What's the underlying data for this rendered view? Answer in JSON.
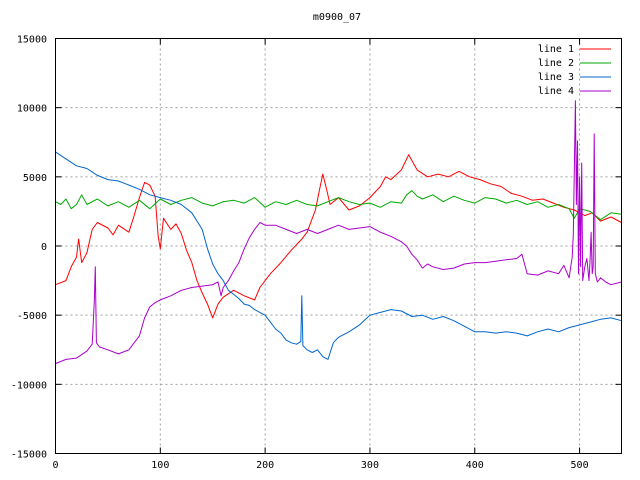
{
  "chart_data": {
    "type": "line",
    "title": "m0900_07",
    "xlabel": "",
    "ylabel": "",
    "xlim": [
      0,
      540
    ],
    "ylim": [
      -15000,
      15000
    ],
    "xticks": [
      0,
      100,
      200,
      300,
      400,
      500
    ],
    "yticks": [
      -15000,
      -10000,
      -5000,
      0,
      5000,
      10000,
      15000
    ],
    "grid": true,
    "legend_position": "top-right",
    "series": [
      {
        "name": "line 1",
        "color": "#ff0000",
        "points": [
          [
            0,
            -2800
          ],
          [
            10,
            -2500
          ],
          [
            15,
            -1500
          ],
          [
            20,
            -800
          ],
          [
            22,
            500
          ],
          [
            25,
            -1200
          ],
          [
            30,
            -500
          ],
          [
            35,
            1200
          ],
          [
            40,
            1700
          ],
          [
            50,
            1300
          ],
          [
            55,
            800
          ],
          [
            60,
            1500
          ],
          [
            70,
            1000
          ],
          [
            75,
            2200
          ],
          [
            80,
            3500
          ],
          [
            85,
            4600
          ],
          [
            90,
            4400
          ],
          [
            95,
            3600
          ],
          [
            98,
            700
          ],
          [
            100,
            -200
          ],
          [
            103,
            2000
          ],
          [
            110,
            1200
          ],
          [
            115,
            1600
          ],
          [
            120,
            900
          ],
          [
            125,
            -300
          ],
          [
            130,
            -1200
          ],
          [
            135,
            -2500
          ],
          [
            140,
            -3400
          ],
          [
            145,
            -4200
          ],
          [
            150,
            -5200
          ],
          [
            155,
            -4200
          ],
          [
            160,
            -3700
          ],
          [
            170,
            -3200
          ],
          [
            180,
            -3600
          ],
          [
            190,
            -3900
          ],
          [
            195,
            -3000
          ],
          [
            205,
            -2000
          ],
          [
            215,
            -1200
          ],
          [
            225,
            -300
          ],
          [
            235,
            500
          ],
          [
            240,
            1000
          ],
          [
            248,
            2600
          ],
          [
            252,
            4100
          ],
          [
            255,
            5200
          ],
          [
            258,
            4300
          ],
          [
            262,
            3000
          ],
          [
            270,
            3500
          ],
          [
            280,
            2600
          ],
          [
            290,
            2900
          ],
          [
            300,
            3500
          ],
          [
            310,
            4300
          ],
          [
            315,
            5000
          ],
          [
            320,
            4800
          ],
          [
            330,
            5500
          ],
          [
            337,
            6600
          ],
          [
            345,
            5500
          ],
          [
            355,
            5000
          ],
          [
            365,
            5200
          ],
          [
            375,
            5000
          ],
          [
            385,
            5400
          ],
          [
            395,
            5000
          ],
          [
            405,
            4800
          ],
          [
            415,
            4500
          ],
          [
            425,
            4300
          ],
          [
            435,
            3800
          ],
          [
            445,
            3600
          ],
          [
            455,
            3300
          ],
          [
            465,
            3400
          ],
          [
            475,
            3100
          ],
          [
            485,
            2800
          ],
          [
            495,
            2600
          ],
          [
            505,
            2200
          ],
          [
            512,
            2400
          ],
          [
            520,
            1800
          ],
          [
            530,
            2100
          ],
          [
            540,
            1700
          ]
        ]
      },
      {
        "name": "line 2",
        "color": "#00aa00",
        "points": [
          [
            0,
            3200
          ],
          [
            5,
            3000
          ],
          [
            10,
            3400
          ],
          [
            15,
            2700
          ],
          [
            20,
            3000
          ],
          [
            25,
            3700
          ],
          [
            30,
            3000
          ],
          [
            40,
            3400
          ],
          [
            50,
            2900
          ],
          [
            60,
            3200
          ],
          [
            70,
            2800
          ],
          [
            80,
            3300
          ],
          [
            90,
            2700
          ],
          [
            100,
            3400
          ],
          [
            110,
            3000
          ],
          [
            120,
            3300
          ],
          [
            130,
            3500
          ],
          [
            140,
            3100
          ],
          [
            150,
            2900
          ],
          [
            160,
            3200
          ],
          [
            170,
            3300
          ],
          [
            180,
            3100
          ],
          [
            190,
            3500
          ],
          [
            200,
            2800
          ],
          [
            210,
            3200
          ],
          [
            220,
            3000
          ],
          [
            230,
            3300
          ],
          [
            240,
            3000
          ],
          [
            250,
            2900
          ],
          [
            260,
            3200
          ],
          [
            270,
            3500
          ],
          [
            280,
            3200
          ],
          [
            290,
            3000
          ],
          [
            300,
            3100
          ],
          [
            310,
            2800
          ],
          [
            320,
            3200
          ],
          [
            330,
            3100
          ],
          [
            335,
            3700
          ],
          [
            340,
            4000
          ],
          [
            345,
            3600
          ],
          [
            350,
            3400
          ],
          [
            360,
            3700
          ],
          [
            370,
            3200
          ],
          [
            380,
            3600
          ],
          [
            390,
            3300
          ],
          [
            400,
            3100
          ],
          [
            410,
            3500
          ],
          [
            420,
            3400
          ],
          [
            430,
            3100
          ],
          [
            440,
            3300
          ],
          [
            450,
            3000
          ],
          [
            460,
            3200
          ],
          [
            470,
            2800
          ],
          [
            480,
            3000
          ],
          [
            490,
            2700
          ],
          [
            495,
            2000
          ],
          [
            500,
            2700
          ],
          [
            510,
            2500
          ],
          [
            520,
            1900
          ],
          [
            530,
            2400
          ],
          [
            540,
            2300
          ]
        ]
      },
      {
        "name": "line 3",
        "color": "#0066cc",
        "points": [
          [
            0,
            6800
          ],
          [
            10,
            6300
          ],
          [
            20,
            5800
          ],
          [
            30,
            5600
          ],
          [
            40,
            5100
          ],
          [
            50,
            4800
          ],
          [
            60,
            4700
          ],
          [
            70,
            4400
          ],
          [
            80,
            4100
          ],
          [
            90,
            3700
          ],
          [
            100,
            3500
          ],
          [
            110,
            3300
          ],
          [
            120,
            3000
          ],
          [
            130,
            2400
          ],
          [
            140,
            1200
          ],
          [
            145,
            -200
          ],
          [
            150,
            -1300
          ],
          [
            155,
            -2000
          ],
          [
            160,
            -2500
          ],
          [
            165,
            -3200
          ],
          [
            170,
            -3500
          ],
          [
            175,
            -3800
          ],
          [
            180,
            -4200
          ],
          [
            185,
            -4300
          ],
          [
            190,
            -4600
          ],
          [
            195,
            -4800
          ],
          [
            200,
            -5000
          ],
          [
            210,
            -6000
          ],
          [
            215,
            -6300
          ],
          [
            220,
            -6800
          ],
          [
            225,
            -7000
          ],
          [
            230,
            -7100
          ],
          [
            234,
            -6900
          ],
          [
            235,
            -3600
          ],
          [
            236,
            -7200
          ],
          [
            240,
            -7500
          ],
          [
            245,
            -7700
          ],
          [
            250,
            -7500
          ],
          [
            255,
            -8000
          ],
          [
            260,
            -8200
          ],
          [
            265,
            -7000
          ],
          [
            270,
            -6600
          ],
          [
            280,
            -6200
          ],
          [
            290,
            -5700
          ],
          [
            300,
            -5000
          ],
          [
            310,
            -4800
          ],
          [
            320,
            -4600
          ],
          [
            330,
            -4700
          ],
          [
            340,
            -5100
          ],
          [
            350,
            -5000
          ],
          [
            360,
            -5300
          ],
          [
            370,
            -5100
          ],
          [
            380,
            -5400
          ],
          [
            390,
            -5800
          ],
          [
            400,
            -6200
          ],
          [
            410,
            -6200
          ],
          [
            420,
            -6300
          ],
          [
            430,
            -6200
          ],
          [
            440,
            -6300
          ],
          [
            450,
            -6500
          ],
          [
            460,
            -6200
          ],
          [
            470,
            -6000
          ],
          [
            480,
            -6200
          ],
          [
            490,
            -5900
          ],
          [
            500,
            -5700
          ],
          [
            510,
            -5500
          ],
          [
            520,
            -5300
          ],
          [
            530,
            -5200
          ],
          [
            540,
            -5400
          ]
        ]
      },
      {
        "name": "line 4",
        "color": "#aa00cc",
        "points": [
          [
            0,
            -8500
          ],
          [
            10,
            -8200
          ],
          [
            20,
            -8100
          ],
          [
            30,
            -7600
          ],
          [
            35,
            -7100
          ],
          [
            37,
            -4000
          ],
          [
            38,
            -1500
          ],
          [
            39,
            -7000
          ],
          [
            42,
            -7300
          ],
          [
            50,
            -7500
          ],
          [
            60,
            -7800
          ],
          [
            70,
            -7500
          ],
          [
            75,
            -7000
          ],
          [
            80,
            -6500
          ],
          [
            85,
            -5200
          ],
          [
            90,
            -4400
          ],
          [
            95,
            -4100
          ],
          [
            100,
            -3900
          ],
          [
            110,
            -3600
          ],
          [
            120,
            -3200
          ],
          [
            130,
            -3000
          ],
          [
            140,
            -2900
          ],
          [
            150,
            -2800
          ],
          [
            155,
            -2600
          ],
          [
            158,
            -3600
          ],
          [
            160,
            -3000
          ],
          [
            165,
            -2500
          ],
          [
            170,
            -1800
          ],
          [
            175,
            -1200
          ],
          [
            180,
            -200
          ],
          [
            185,
            600
          ],
          [
            190,
            1200
          ],
          [
            195,
            1700
          ],
          [
            200,
            1500
          ],
          [
            210,
            1500
          ],
          [
            220,
            1200
          ],
          [
            230,
            900
          ],
          [
            240,
            1200
          ],
          [
            250,
            900
          ],
          [
            260,
            1200
          ],
          [
            270,
            1500
          ],
          [
            280,
            1200
          ],
          [
            290,
            1300
          ],
          [
            300,
            1400
          ],
          [
            310,
            1000
          ],
          [
            320,
            700
          ],
          [
            330,
            300
          ],
          [
            335,
            0
          ],
          [
            340,
            -600
          ],
          [
            345,
            -1000
          ],
          [
            350,
            -1600
          ],
          [
            355,
            -1300
          ],
          [
            360,
            -1500
          ],
          [
            370,
            -1700
          ],
          [
            380,
            -1600
          ],
          [
            390,
            -1300
          ],
          [
            400,
            -1200
          ],
          [
            410,
            -1200
          ],
          [
            420,
            -1100
          ],
          [
            430,
            -1000
          ],
          [
            440,
            -900
          ],
          [
            445,
            -600
          ],
          [
            450,
            -2000
          ],
          [
            460,
            -2100
          ],
          [
            470,
            -1800
          ],
          [
            480,
            -2000
          ],
          [
            485,
            -1400
          ],
          [
            490,
            -2300
          ],
          [
            493,
            -800
          ],
          [
            494,
            800
          ],
          [
            496,
            10500
          ],
          [
            497,
            3000
          ],
          [
            498,
            7600
          ],
          [
            499,
            -2000
          ],
          [
            500,
            5000
          ],
          [
            501,
            -1500
          ],
          [
            502,
            6000
          ],
          [
            503,
            -2500
          ],
          [
            505,
            -1500
          ],
          [
            507,
            -900
          ],
          [
            509,
            -2500
          ],
          [
            510,
            -1000
          ],
          [
            511,
            1000
          ],
          [
            512,
            -2000
          ],
          [
            513,
            -1500
          ],
          [
            514,
            8100
          ],
          [
            515,
            -2000
          ],
          [
            517,
            -2600
          ],
          [
            520,
            -2300
          ],
          [
            525,
            -2600
          ],
          [
            530,
            -2800
          ],
          [
            540,
            -2600
          ]
        ]
      }
    ]
  }
}
